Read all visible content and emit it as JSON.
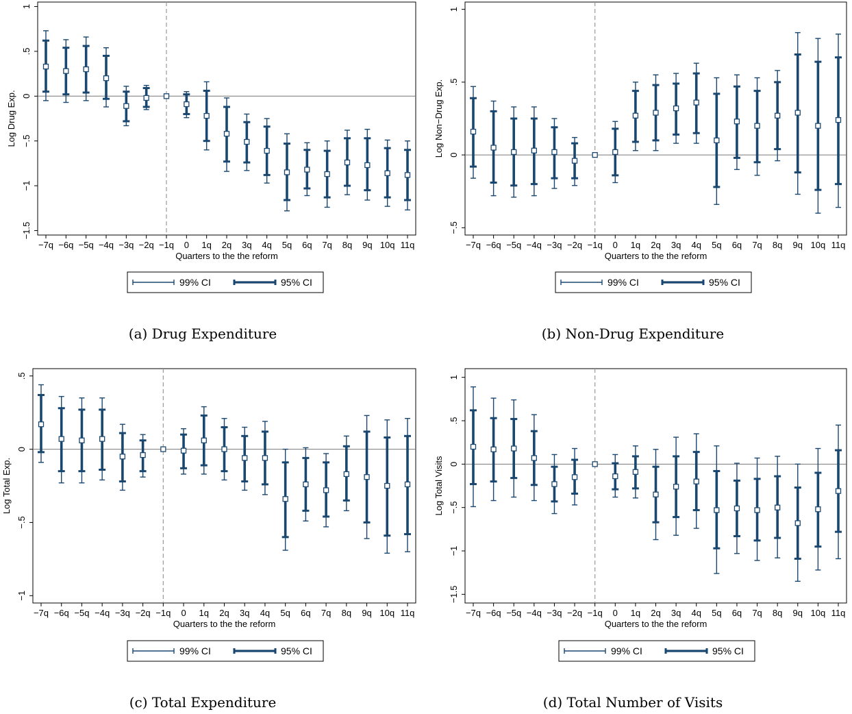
{
  "figure": {
    "legend": {
      "ci99_label": "99% CI",
      "ci95_label": "95% CI"
    },
    "colors": {
      "ci": "#1a476f",
      "grid": "#777777",
      "reform_line": "#999999",
      "point_fill": "#ffffff"
    }
  },
  "chart_data": [
    {
      "type": "scatter",
      "caption": "(a) Drug Expenditure",
      "title": "",
      "xlabel": "Quarters to the the reform",
      "ylabel": "Log Drug Exp.",
      "categories": [
        "−7q",
        "−6q",
        "−5q",
        "−4q",
        "−3q",
        "−2q",
        "−1q",
        "0",
        "1q",
        "2q",
        "3q",
        "4q",
        "5q",
        "6q",
        "7q",
        "8q",
        "9q",
        "10q",
        "11q"
      ],
      "ylim": [
        -1.55,
        1.05
      ],
      "yticks": [
        1,
        0.5,
        0,
        -0.5,
        -1,
        -1.5
      ],
      "ytick_labels": [
        "1",
        ".5",
        "0",
        "−.5",
        "−1",
        "−1.5"
      ],
      "reference_category": "−1q",
      "estimate": [
        0.33,
        0.28,
        0.3,
        0.2,
        -0.11,
        -0.02,
        0,
        -0.09,
        -0.22,
        -0.42,
        -0.51,
        -0.61,
        -0.85,
        -0.82,
        -0.87,
        -0.74,
        -0.77,
        -0.86,
        -0.88
      ],
      "ci95_low": [
        0.05,
        0.02,
        0.04,
        -0.03,
        -0.28,
        -0.12,
        0,
        -0.2,
        -0.5,
        -0.73,
        -0.74,
        -0.88,
        -1.16,
        -1.03,
        -1.13,
        -1.0,
        -1.05,
        -1.13,
        -1.16
      ],
      "ci95_high": [
        0.62,
        0.54,
        0.56,
        0.45,
        0.05,
        0.09,
        0,
        0.02,
        0.06,
        -0.12,
        -0.29,
        -0.34,
        -0.53,
        -0.6,
        -0.61,
        -0.47,
        -0.47,
        -0.58,
        -0.6
      ],
      "ci99_low": [
        -0.05,
        -0.07,
        -0.05,
        -0.12,
        -0.33,
        -0.15,
        0,
        -0.24,
        -0.6,
        -0.84,
        -0.83,
        -0.97,
        -1.28,
        -1.11,
        -1.24,
        -1.1,
        -1.16,
        -1.23,
        -1.27
      ],
      "ci99_high": [
        0.73,
        0.63,
        0.66,
        0.54,
        0.11,
        0.12,
        0,
        0.05,
        0.16,
        -0.02,
        -0.2,
        -0.25,
        -0.42,
        -0.52,
        -0.5,
        -0.38,
        -0.37,
        -0.49,
        -0.5
      ],
      "legend": [
        "99% CI",
        "95% CI"
      ],
      "legend_position": "bottom-center",
      "grid": false
    },
    {
      "type": "scatter",
      "caption": "(b) Non-Drug Expenditure",
      "title": "",
      "xlabel": "Quarters to the the reform",
      "ylabel": "Log Non−Drug Exp.",
      "categories": [
        "−7q",
        "−6q",
        "−5q",
        "−4q",
        "−3q",
        "−2q",
        "−1q",
        "0",
        "1q",
        "2q",
        "3q",
        "4q",
        "5q",
        "6q",
        "7q",
        "8q",
        "9q",
        "10q",
        "11q"
      ],
      "ylim": [
        -0.55,
        1.05
      ],
      "yticks": [
        1,
        0.5,
        0,
        -0.5
      ],
      "ytick_labels": [
        "1",
        ".5",
        "0",
        "−.5"
      ],
      "reference_category": "−1q",
      "estimate": [
        0.16,
        0.05,
        0.02,
        0.03,
        0.02,
        -0.04,
        0,
        0.02,
        0.27,
        0.29,
        0.32,
        0.36,
        0.1,
        0.23,
        0.2,
        0.27,
        0.29,
        0.2,
        0.24
      ],
      "ci95_low": [
        -0.08,
        -0.19,
        -0.21,
        -0.2,
        -0.16,
        -0.16,
        0,
        -0.14,
        0.09,
        0.1,
        0.14,
        0.15,
        -0.22,
        -0.02,
        -0.05,
        0.04,
        -0.12,
        -0.24,
        -0.2
      ],
      "ci95_high": [
        0.39,
        0.3,
        0.25,
        0.25,
        0.19,
        0.08,
        0,
        0.18,
        0.44,
        0.48,
        0.49,
        0.56,
        0.42,
        0.47,
        0.44,
        0.5,
        0.69,
        0.64,
        0.67
      ],
      "ci99_low": [
        -0.16,
        -0.28,
        -0.29,
        -0.28,
        -0.23,
        -0.21,
        0,
        -0.19,
        0.03,
        0.03,
        0.08,
        0.08,
        -0.34,
        -0.1,
        -0.14,
        -0.04,
        -0.27,
        -0.4,
        -0.36
      ],
      "ci99_high": [
        0.47,
        0.37,
        0.33,
        0.33,
        0.25,
        0.12,
        0,
        0.23,
        0.5,
        0.55,
        0.56,
        0.63,
        0.53,
        0.55,
        0.53,
        0.58,
        0.84,
        0.8,
        0.83
      ],
      "legend": [
        "99% CI",
        "95% CI"
      ],
      "legend_position": "bottom-center",
      "grid": false
    },
    {
      "type": "scatter",
      "caption": "(c) Total Expenditure",
      "title": "",
      "xlabel": "Quarters to the the reform",
      "ylabel": "Log Total Exp.",
      "categories": [
        "−7q",
        "−6q",
        "−5q",
        "−4q",
        "−3q",
        "−2q",
        "−1q",
        "0",
        "1q",
        "2q",
        "3q",
        "4q",
        "5q",
        "6q",
        "7q",
        "8q",
        "9q",
        "10q",
        "11q"
      ],
      "ylim": [
        -1.05,
        0.55
      ],
      "yticks": [
        0.5,
        0,
        -0.5,
        -1
      ],
      "ytick_labels": [
        ".5",
        "0",
        "−.5",
        "−1"
      ],
      "reference_category": "−1q",
      "estimate": [
        0.17,
        0.07,
        0.06,
        0.07,
        -0.05,
        -0.04,
        0,
        -0.01,
        0.06,
        0.0,
        -0.06,
        -0.06,
        -0.34,
        -0.24,
        -0.28,
        -0.17,
        -0.19,
        -0.25,
        -0.24
      ],
      "ci95_low": [
        -0.02,
        -0.15,
        -0.15,
        -0.14,
        -0.22,
        -0.15,
        0,
        -0.13,
        -0.11,
        -0.15,
        -0.22,
        -0.24,
        -0.6,
        -0.42,
        -0.46,
        -0.35,
        -0.5,
        -0.59,
        -0.58
      ],
      "ci95_high": [
        0.37,
        0.28,
        0.27,
        0.27,
        0.11,
        0.06,
        0,
        0.1,
        0.23,
        0.15,
        0.09,
        0.12,
        -0.09,
        -0.06,
        -0.09,
        0.02,
        0.12,
        0.08,
        0.09
      ],
      "ci99_low": [
        -0.09,
        -0.23,
        -0.23,
        -0.21,
        -0.28,
        -0.19,
        0,
        -0.17,
        -0.17,
        -0.21,
        -0.28,
        -0.31,
        -0.69,
        -0.49,
        -0.53,
        -0.42,
        -0.61,
        -0.71,
        -0.7
      ],
      "ci99_high": [
        0.44,
        0.36,
        0.35,
        0.35,
        0.17,
        0.1,
        0,
        0.14,
        0.29,
        0.21,
        0.15,
        0.19,
        0.0,
        0.01,
        -0.03,
        0.09,
        0.23,
        0.2,
        0.21
      ],
      "legend": [
        "99% CI",
        "95% CI"
      ],
      "legend_position": "bottom-center",
      "grid": false
    },
    {
      "type": "scatter",
      "caption": "(d) Total Number of Visits",
      "title": "",
      "xlabel": "Quarters to the the reform",
      "ylabel": "Log Total Visits",
      "categories": [
        "−7q",
        "−6q",
        "−5q",
        "−4q",
        "−3q",
        "−2q",
        "−1q",
        "0",
        "1q",
        "2q",
        "3q",
        "4q",
        "5q",
        "6q",
        "7q",
        "8q",
        "9q",
        "10q",
        "11q"
      ],
      "ylim": [
        -1.6,
        1.1
      ],
      "yticks": [
        1,
        0.5,
        0,
        -0.5,
        -1,
        -1.5
      ],
      "ytick_labels": [
        "1",
        ".5",
        "0",
        "−.5",
        "−1",
        "−1.5"
      ],
      "reference_category": "−1q",
      "estimate": [
        0.2,
        0.17,
        0.18,
        0.07,
        -0.23,
        -0.15,
        0,
        -0.14,
        -0.09,
        -0.35,
        -0.26,
        -0.2,
        -0.53,
        -0.51,
        -0.53,
        -0.5,
        -0.68,
        -0.52,
        -0.31
      ],
      "ci95_low": [
        -0.23,
        -0.2,
        -0.16,
        -0.24,
        -0.43,
        -0.34,
        0,
        -0.29,
        -0.28,
        -0.67,
        -0.61,
        -0.53,
        -0.97,
        -0.83,
        -0.88,
        -0.85,
        -1.09,
        -0.95,
        -0.78
      ],
      "ci95_high": [
        0.62,
        0.53,
        0.52,
        0.38,
        -0.03,
        0.05,
        0,
        0.01,
        0.09,
        -0.03,
        0.09,
        0.14,
        -0.08,
        -0.19,
        -0.17,
        -0.14,
        -0.27,
        -0.1,
        0.16
      ],
      "ci99_low": [
        -0.49,
        -0.42,
        -0.38,
        -0.42,
        -0.57,
        -0.47,
        0,
        -0.38,
        -0.39,
        -0.87,
        -0.82,
        -0.74,
        -1.26,
        -1.03,
        -1.11,
        -1.08,
        -1.35,
        -1.22,
        -1.09
      ],
      "ci99_high": [
        0.89,
        0.76,
        0.74,
        0.57,
        0.11,
        0.18,
        0,
        0.11,
        0.21,
        0.17,
        0.31,
        0.35,
        0.21,
        0.01,
        0.07,
        0.09,
        0.0,
        0.18,
        0.45
      ],
      "legend": [
        "99% CI",
        "95% CI"
      ],
      "legend_position": "bottom-center",
      "grid": false
    }
  ]
}
